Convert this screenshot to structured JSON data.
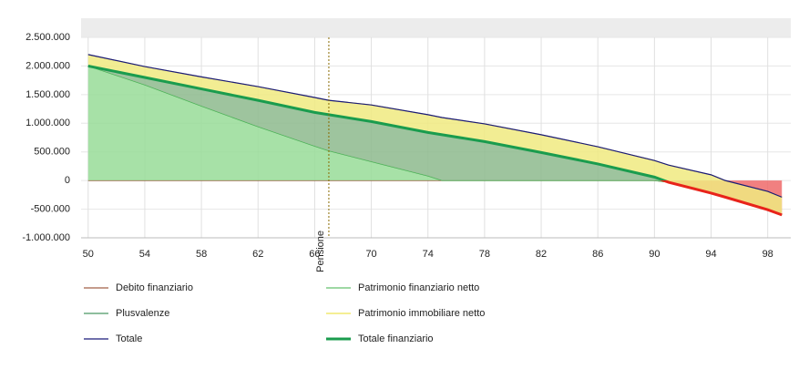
{
  "chart_data": {
    "type": "stacked-area",
    "x": [
      50,
      54,
      58,
      62,
      66,
      67,
      70,
      74,
      75,
      78,
      82,
      86,
      90,
      91,
      94,
      95,
      98,
      99
    ],
    "xlim": [
      49.5,
      99.5
    ],
    "xticks": [
      50,
      54,
      58,
      62,
      66,
      70,
      74,
      78,
      82,
      86,
      90,
      94,
      98
    ],
    "ylim": [
      -1000000,
      2500000
    ],
    "yticks": [
      {
        "value": -1000000,
        "label": "-1.000.000"
      },
      {
        "value": -500000,
        "label": "-500.000"
      },
      0,
      {
        "value": 500000,
        "label": "500.000"
      },
      {
        "value": 1000000,
        "label": "1.000.000"
      },
      {
        "value": 1500000,
        "label": "1.500.000"
      },
      {
        "value": 2000000,
        "label": "2.000.000"
      },
      {
        "value": 2500000,
        "label": "2.500.000"
      }
    ],
    "grid": true,
    "annotation": {
      "x": 67,
      "label": "Pensione"
    },
    "series": [
      {
        "name": "Debito finanziario",
        "kind": "area",
        "color": "#8b3a1a",
        "fill": "#ee6a6a",
        "values": [
          0,
          0,
          0,
          0,
          0,
          0,
          0,
          0,
          0,
          0,
          0,
          0,
          0,
          -30000,
          -220000,
          -290000,
          -510000,
          -600000
        ]
      },
      {
        "name": "Patrimonio finanziario netto",
        "kind": "area",
        "color": "#3cb04a",
        "fill": "#98dc98",
        "values": [
          2000000,
          1670000,
          1300000,
          940000,
          600000,
          520000,
          330000,
          80000,
          0,
          0,
          0,
          0,
          0,
          0,
          0,
          0,
          0,
          0
        ]
      },
      {
        "name": "Plusvalenze",
        "kind": "area",
        "color": "#1e7d3c",
        "fill": "#8dba8d",
        "values": [
          0,
          130000,
          300000,
          460000,
          590000,
          630000,
          700000,
          760000,
          800000,
          680000,
          490000,
          290000,
          60000,
          0,
          0,
          0,
          0,
          0
        ]
      },
      {
        "name": "Patrimonio immobiliare netto",
        "kind": "area",
        "color": "#e8dc2a",
        "fill": "#f0ea80",
        "values": [
          200000,
          190000,
          210000,
          240000,
          260000,
          250000,
          290000,
          310000,
          300000,
          310000,
          310000,
          300000,
          290000,
          300000,
          320000,
          290000,
          320000,
          310000
        ]
      },
      {
        "name": "Totale",
        "kind": "line",
        "color": "#1a1a7a",
        "width": 1.2,
        "values": [
          2200000,
          1990000,
          1810000,
          1640000,
          1450000,
          1400000,
          1320000,
          1150000,
          1100000,
          990000,
          800000,
          590000,
          350000,
          270000,
          100000,
          0,
          -190000,
          -290000
        ]
      },
      {
        "name": "Totale finanziario",
        "kind": "line",
        "color": "#1a9c4e",
        "negative_color": "#e8231a",
        "width": 3,
        "values": [
          2000000,
          1800000,
          1600000,
          1400000,
          1190000,
          1150000,
          1030000,
          840000,
          800000,
          680000,
          490000,
          290000,
          60000,
          -30000,
          -220000,
          -290000,
          -510000,
          -600000
        ]
      }
    ]
  }
}
